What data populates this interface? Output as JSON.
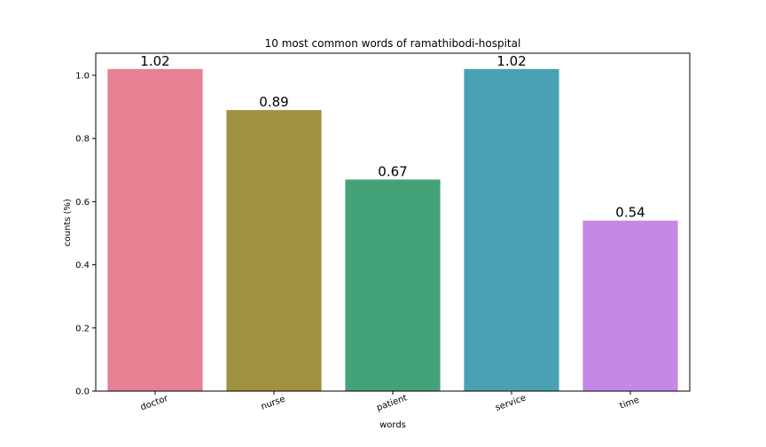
{
  "chart_data": {
    "type": "bar",
    "title": "10 most common words of ramathibodi-hospital",
    "xlabel": "words",
    "ylabel": "counts  (%)",
    "categories": [
      "doctor",
      "nurse",
      "patient",
      "service",
      "time"
    ],
    "values": [
      1.02,
      0.89,
      0.67,
      1.02,
      0.54
    ],
    "value_labels": [
      "1.02",
      "0.89",
      "0.67",
      "1.02",
      "0.54"
    ],
    "colors": [
      "#e68193",
      "#a09140",
      "#44a279",
      "#4ba1b4",
      "#c688e6"
    ],
    "ylim": [
      0,
      1.07
    ],
    "yticks": [
      0.0,
      0.2,
      0.4,
      0.6,
      0.8,
      1.0
    ],
    "ytick_labels": [
      "0.0",
      "0.2",
      "0.4",
      "0.6",
      "0.8",
      "1.0"
    ],
    "xtick_rotation_deg": 20,
    "grid": false,
    "legend": "none"
  }
}
